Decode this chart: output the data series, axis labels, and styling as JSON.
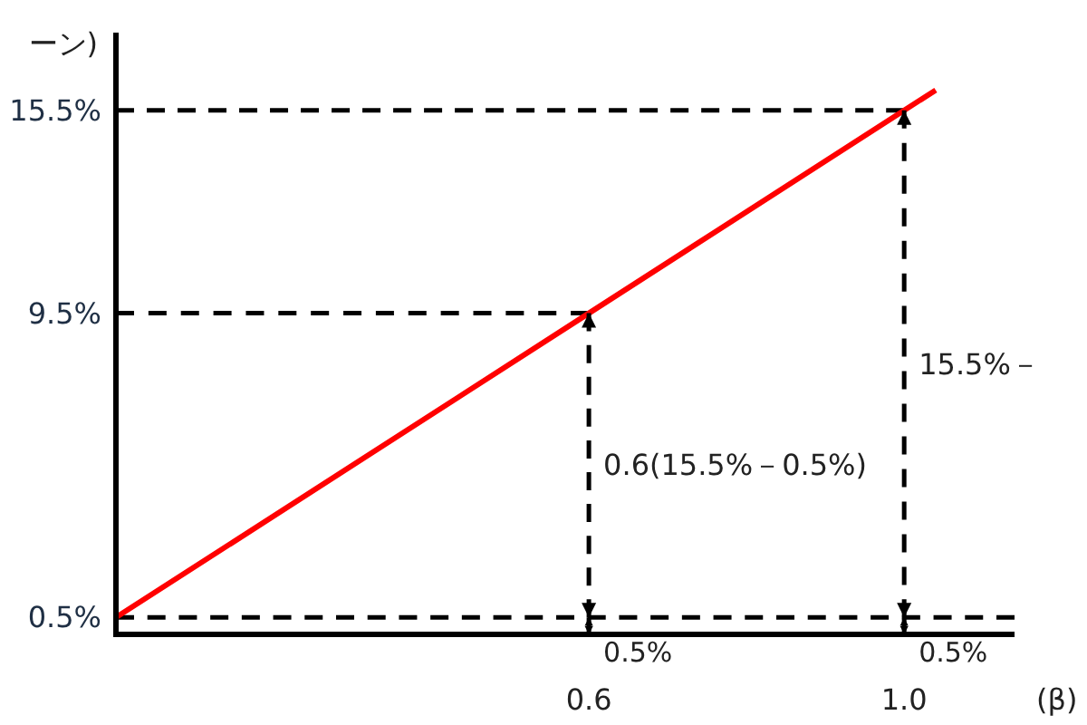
{
  "chart_data": {
    "type": "line",
    "ylabel": "ーン)",
    "xlabel": "(β)",
    "x": [
      0,
      0.6,
      1.0,
      1.04
    ],
    "series": [
      {
        "color": "#ff0000",
        "line_style": "solid",
        "values": [
          0.5,
          9.5,
          15.5,
          16.1
        ],
        "errors": [
          null,
          [
            0.5,
            9.5
          ],
          [
            0.5,
            15.5
          ],
          null
        ]
      },
      {
        "color": "#000000",
        "line_style": "dashed",
        "x": [
          0,
          1.0
        ],
        "values": [
          15.5,
          15.5
        ]
      },
      {
        "color": "#000000",
        "line_style": "dashed",
        "x": [
          0,
          0.6
        ],
        "values": [
          9.5,
          9.5
        ]
      },
      {
        "color": "#000000",
        "line_style": "dashed",
        "x": [
          0,
          0.6,
          1.0,
          1.14
        ],
        "values": [
          0.5,
          0.5,
          0.5,
          0.5
        ],
        "errors": [
          null,
          [
            0,
            0.5
          ],
          [
            0,
            0.5
          ],
          null
        ]
      }
    ],
    "annotations": [
      "0.6(15.5%－0.5%)",
      "15.5%－",
      "0.5%",
      "0.5%"
    ],
    "xlim": [
      0,
      1.14
    ],
    "ylim": [
      0,
      17.8
    ],
    "xticks": [
      0.6,
      {
        "value": 1.0,
        "label": "1.0"
      }
    ],
    "yticks": [
      {
        "value": 0.5,
        "label": "0.5%"
      },
      {
        "value": 9.5,
        "label": "9.5%"
      },
      {
        "value": 15.5,
        "label": "15.5%"
      }
    ],
    "marker": "none"
  }
}
